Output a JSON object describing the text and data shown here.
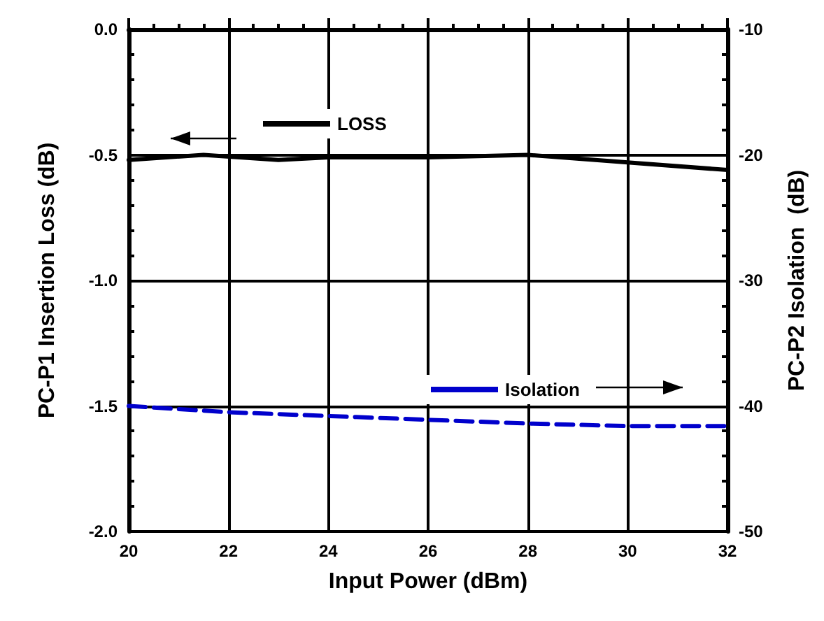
{
  "chart_data": {
    "type": "line",
    "xlabel": "Input Power (dBm)",
    "ylabel": "PC-P1 Insertion Loss (dB)",
    "y2label": "PC-P2 Isolation  (dB)",
    "xlim": [
      20,
      32
    ],
    "xticks": [
      20,
      22,
      24,
      26,
      28,
      30,
      32
    ],
    "ylim": [
      -2,
      0
    ],
    "yticks": [
      {
        "value": -2,
        "label": "-2.0"
      },
      {
        "value": -1.5,
        "label": "-1.5"
      },
      {
        "value": -1,
        "label": "-1.0"
      },
      {
        "value": -0.5,
        "label": "-0.5"
      },
      {
        "value": 0,
        "label": "0.0"
      }
    ],
    "y2lim": [
      -50,
      -10
    ],
    "y2ticks": [
      -50,
      -40,
      -30,
      -20,
      -10
    ],
    "grid": true,
    "legend": "top",
    "marker": "none",
    "series": [
      {
        "name": "LOSS",
        "color": "#000000",
        "line_style": "solid",
        "x": [
          20,
          21.5,
          23,
          24,
          26,
          28,
          30,
          32
        ],
        "values": [
          -0.52,
          -0.5,
          -0.52,
          -0.51,
          -0.51,
          -0.5,
          -0.53,
          -0.56
        ]
      },
      {
        "name": "Isolation",
        "color": "#0000cc",
        "line_style": "dashed",
        "axis": "y2",
        "x": [
          20,
          22,
          24,
          26,
          28,
          30,
          32
        ],
        "values": [
          -40,
          -40.5,
          -40.8,
          -41.1,
          -41.4,
          -41.6,
          -41.6
        ]
      }
    ]
  }
}
